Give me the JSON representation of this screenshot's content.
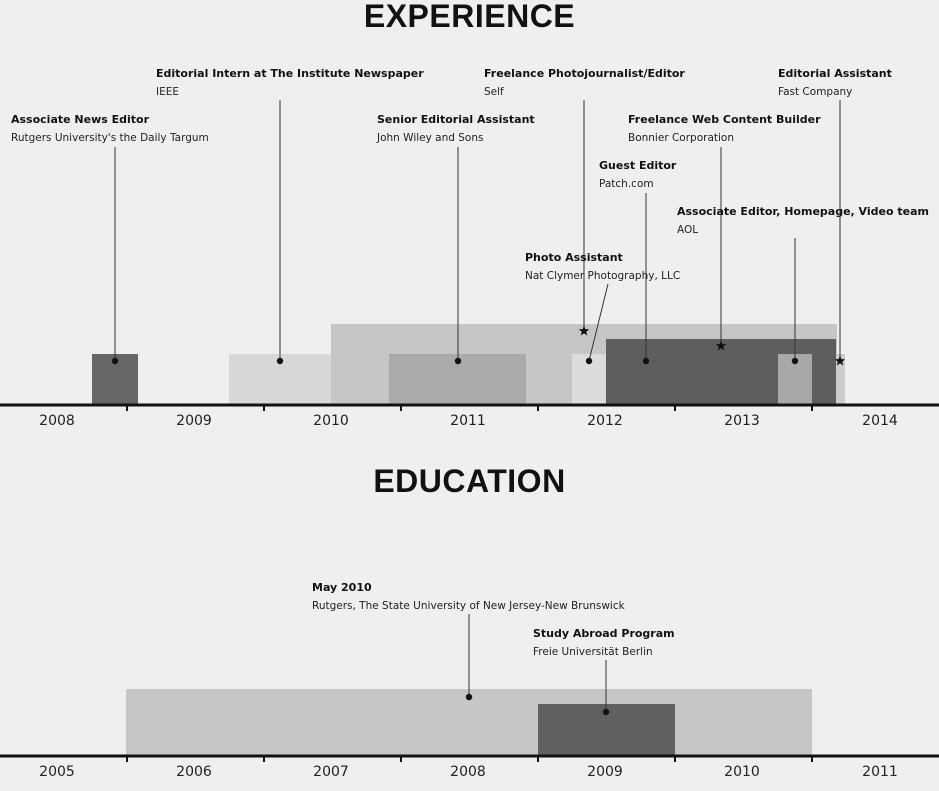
{
  "experience": {
    "heading": "EXPERIENCE",
    "axis_labels": [
      "2008",
      "2009",
      "2010",
      "2011",
      "2012",
      "2013",
      "2014"
    ],
    "roles": [
      {
        "title": "Associate News Editor",
        "org": "Rutgers University's the Daily Targum",
        "shade": "#666666"
      },
      {
        "title": "Editorial Intern at The Institute Newspaper",
        "org": "IEEE",
        "shade": "#d8d8d8"
      },
      {
        "title": "Senior Editorial Assistant",
        "org": "John Wiley and Sons",
        "shade": "#aaaaaa"
      },
      {
        "title": "Freelance Photojournalist/Editor",
        "org": "Self",
        "shade": "#c6c6c6"
      },
      {
        "title": "Photo Assistant",
        "org": "Nat Clymer Photography, LLC",
        "shade": "#dcdcdc"
      },
      {
        "title": "Guest Editor",
        "org": "Patch.com",
        "shade": "#aaaaaa"
      },
      {
        "title": "Freelance Web Content Builder",
        "org": "Bonnier Corporation",
        "shade": "#5e5e5e"
      },
      {
        "title": "Associate Editor, Homepage, Video team",
        "org": "AOL",
        "shade": "#a8a8a8"
      },
      {
        "title": "Editorial Assistant",
        "org": "Fast Company",
        "shade": "#cccccc"
      }
    ]
  },
  "education": {
    "heading": "EDUCATION",
    "axis_labels": [
      "2005",
      "2006",
      "2007",
      "2008",
      "2009",
      "2010",
      "2011"
    ],
    "entries": [
      {
        "title": "May 2010",
        "org": "Rutgers, The State University of New Jersey-New Brunswick",
        "shade": "#c6c6c6"
      },
      {
        "title": "Study Abroad Program",
        "org": "Freie Universität Berlin",
        "shade": "#606060"
      }
    ]
  }
}
